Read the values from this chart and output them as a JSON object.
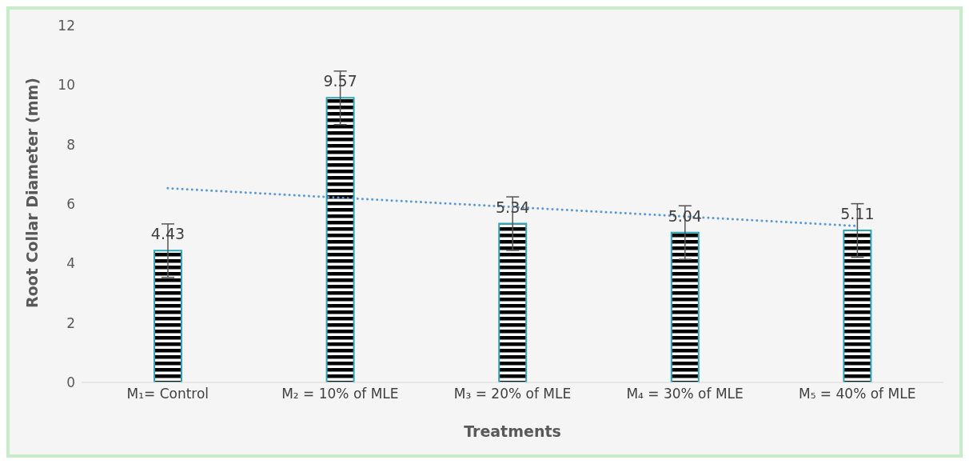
{
  "chart_data": {
    "type": "bar",
    "xlabel": "Treatments",
    "ylabel": "Root Collar Diameter (mm)",
    "categories": [
      "M₁= Control",
      "M₂ = 10% of MLE",
      "M₃ = 20% of MLE",
      "M₄ = 30% of MLE",
      "M₅ = 40% of MLE"
    ],
    "series": [
      {
        "color": "#2ea6b8",
        "values": [
          4.43,
          9.57,
          5.34,
          5.04,
          5.11
        ],
        "value_labels": [
          "4.43",
          "9.57",
          "5.34",
          "5.04",
          "5.11"
        ],
        "errors": [
          0.9,
          0.9,
          0.9,
          0.9,
          0.9
        ]
      },
      {
        "type": "line",
        "color": "#5b9bd5",
        "line_style": "dotted",
        "x": [
          "M₁= Control",
          "M₂ = 10% of MLE",
          "M₃ = 20% of MLE",
          "M₄ = 30% of MLE",
          "M₅ = 40% of MLE"
        ],
        "values": [
          6.53,
          6.21,
          5.9,
          5.58,
          5.26
        ]
      }
    ],
    "ylim": [
      0,
      12
    ],
    "yticks": [
      0,
      2,
      4,
      6,
      8,
      10,
      12
    ],
    "grid": false,
    "legend": false
  }
}
